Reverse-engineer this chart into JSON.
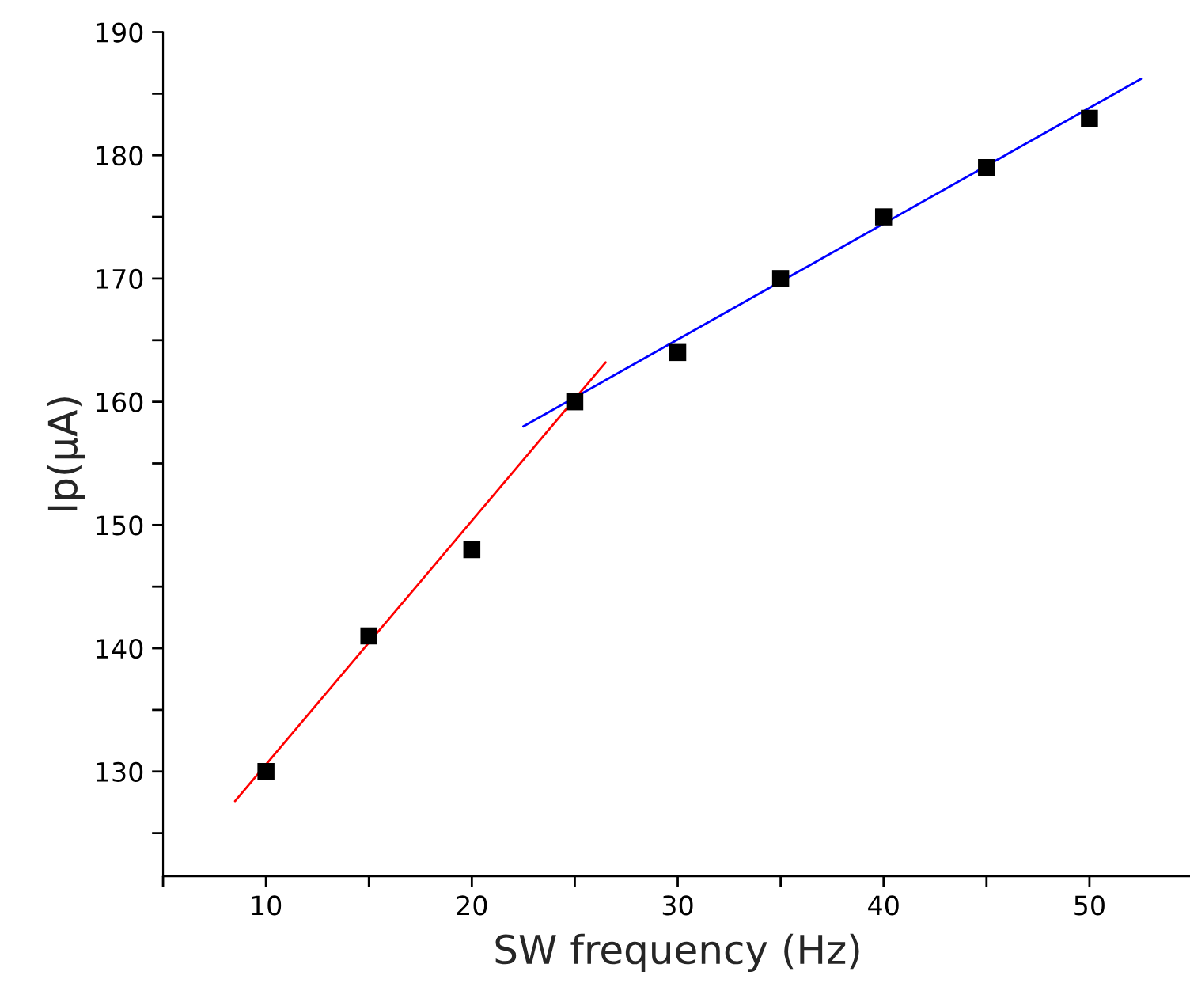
{
  "chart_data": {
    "type": "scatter",
    "xlabel": "SW frequency (Hz)",
    "ylabel": "Ip(μA)",
    "xlim": [
      5,
      55
    ],
    "ylim": [
      121.5,
      190
    ],
    "xticks": [
      {
        "value": 5,
        "label": null
      },
      10,
      {
        "value": 15,
        "label": null
      },
      20,
      {
        "value": 25,
        "label": null
      },
      30,
      {
        "value": 35,
        "label": null
      },
      40,
      {
        "value": 45,
        "label": null
      },
      50,
      {
        "value": 55,
        "label": null
      }
    ],
    "yticks": [
      {
        "value": 125,
        "label": null
      },
      130,
      {
        "value": 135,
        "label": null
      },
      140,
      {
        "value": 145,
        "label": null
      },
      150,
      {
        "value": 155,
        "label": null
      },
      160,
      {
        "value": 165,
        "label": null
      },
      170,
      {
        "value": 175,
        "label": null
      },
      180,
      {
        "value": 185,
        "label": null
      },
      190
    ],
    "grid": false,
    "legend": false,
    "series": [
      {
        "marker": "square",
        "color": "#000000",
        "x": [
          10,
          15,
          20,
          25,
          30,
          35,
          40,
          45,
          50
        ],
        "values": [
          130,
          141,
          148,
          160,
          164,
          170,
          175,
          179,
          183
        ]
      },
      {
        "type": "line",
        "color": "#ff0000",
        "x": [
          8.5,
          26.5
        ],
        "values": [
          127.6,
          163.2
        ]
      },
      {
        "type": "line",
        "color": "#0000ff",
        "x": [
          22.5,
          52.5
        ],
        "values": [
          158,
          186.2
        ]
      }
    ]
  }
}
